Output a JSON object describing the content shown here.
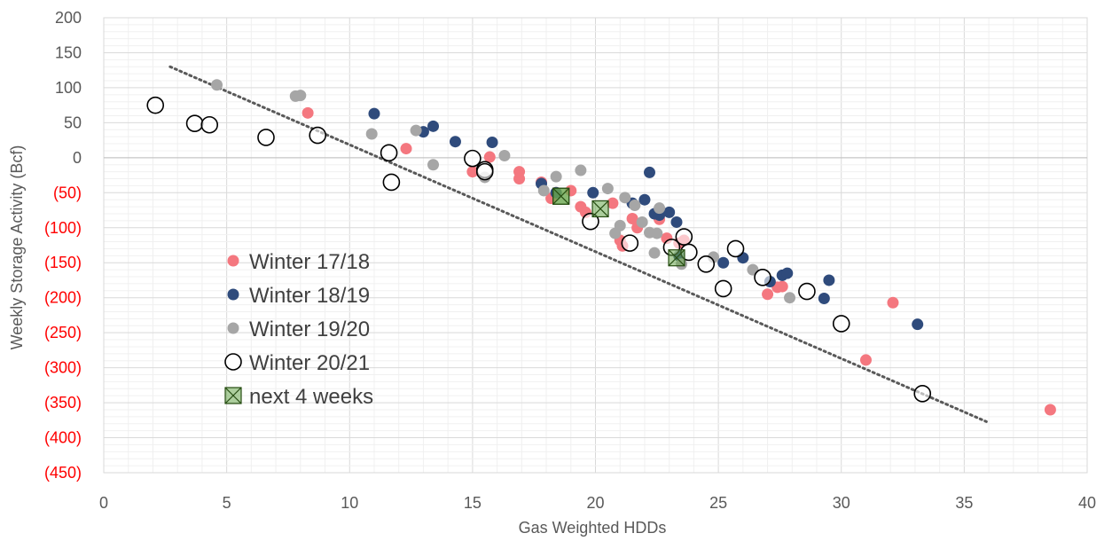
{
  "chart_data": {
    "type": "scatter",
    "xlabel": "Gas Weighted HDDs",
    "ylabel": "Weekly Storage Activity (Bcf)",
    "xlim": [
      0,
      40
    ],
    "ylim": [
      -450,
      200
    ],
    "x_ticks": [
      {
        "value": 0,
        "label": "0"
      },
      {
        "value": 5,
        "label": "5"
      },
      {
        "value": 10,
        "label": "10"
      },
      {
        "value": 15,
        "label": "15"
      },
      {
        "value": 20,
        "label": "20"
      },
      {
        "value": 25,
        "label": "25"
      },
      {
        "value": 30,
        "label": "30"
      },
      {
        "value": 35,
        "label": "35"
      },
      {
        "value": 40,
        "label": "40"
      }
    ],
    "y_ticks": [
      {
        "value": 200,
        "label": "200"
      },
      {
        "value": 150,
        "label": "150"
      },
      {
        "value": 100,
        "label": "100"
      },
      {
        "value": 50,
        "label": "50"
      },
      {
        "value": 0,
        "label": "0"
      },
      {
        "value": -50,
        "label": "(50)"
      },
      {
        "value": -100,
        "label": "(100)"
      },
      {
        "value": -150,
        "label": "(150)"
      },
      {
        "value": -200,
        "label": "(200)"
      },
      {
        "value": -250,
        "label": "(250)"
      },
      {
        "value": -300,
        "label": "(300)"
      },
      {
        "value": -350,
        "label": "(350)"
      },
      {
        "value": -400,
        "label": "(400)"
      },
      {
        "value": -450,
        "label": "(450)"
      }
    ],
    "negative_label_color": "#ff0000",
    "positive_label_color": "#595959",
    "grid": true,
    "legend_position": "lower-left",
    "trendline": {
      "style": "dotted",
      "color": "#595959",
      "x": [
        2.7,
        35.9
      ],
      "y": [
        130,
        -377
      ]
    },
    "series": [
      {
        "name": "Winter 17/18",
        "marker": "filled-circle",
        "color": "#f4777f",
        "points": [
          [
            8.3,
            64
          ],
          [
            12.3,
            13
          ],
          [
            15.0,
            -20
          ],
          [
            15.7,
            1
          ],
          [
            16.9,
            -20
          ],
          [
            16.9,
            -30
          ],
          [
            17.8,
            -35
          ],
          [
            18.2,
            -58
          ],
          [
            18.4,
            -50
          ],
          [
            19.0,
            -47
          ],
          [
            19.4,
            -70
          ],
          [
            19.6,
            -78
          ],
          [
            20.7,
            -65
          ],
          [
            21.0,
            -118
          ],
          [
            21.1,
            -126
          ],
          [
            21.5,
            -87
          ],
          [
            21.7,
            -100
          ],
          [
            22.6,
            -88
          ],
          [
            22.9,
            -115
          ],
          [
            23.4,
            -122
          ],
          [
            23.6,
            -118
          ],
          [
            27.0,
            -195
          ],
          [
            27.4,
            -185
          ],
          [
            27.6,
            -184
          ],
          [
            31.0,
            -289
          ],
          [
            32.1,
            -207
          ],
          [
            38.5,
            -360
          ]
        ]
      },
      {
        "name": "Winter 18/19",
        "marker": "filled-circle",
        "color": "#2f4b7c",
        "points": [
          [
            11.0,
            63
          ],
          [
            13.0,
            37
          ],
          [
            13.4,
            45
          ],
          [
            14.3,
            23
          ],
          [
            15.8,
            22
          ],
          [
            17.8,
            -37
          ],
          [
            18.4,
            -50
          ],
          [
            19.9,
            -50
          ],
          [
            21.5,
            -65
          ],
          [
            22.0,
            -60
          ],
          [
            22.2,
            -21
          ],
          [
            22.4,
            -80
          ],
          [
            22.6,
            -82
          ],
          [
            23.0,
            -78
          ],
          [
            23.3,
            -92
          ],
          [
            23.4,
            -140
          ],
          [
            25.2,
            -150
          ],
          [
            26.0,
            -143
          ],
          [
            27.1,
            -177
          ],
          [
            27.6,
            -168
          ],
          [
            27.8,
            -165
          ],
          [
            29.3,
            -201
          ],
          [
            29.5,
            -175
          ],
          [
            33.1,
            -238
          ]
        ]
      },
      {
        "name": "Winter 19/20",
        "marker": "filled-circle",
        "color": "#a6a6a6",
        "points": [
          [
            4.6,
            104
          ],
          [
            7.8,
            88
          ],
          [
            8.0,
            89
          ],
          [
            10.9,
            34
          ],
          [
            12.7,
            39
          ],
          [
            13.4,
            -10
          ],
          [
            15.5,
            -28
          ],
          [
            16.3,
            3
          ],
          [
            17.9,
            -47
          ],
          [
            18.4,
            -27
          ],
          [
            19.4,
            -18
          ],
          [
            20.5,
            -44
          ],
          [
            20.8,
            -108
          ],
          [
            21.0,
            -97
          ],
          [
            21.2,
            -57
          ],
          [
            21.6,
            -68
          ],
          [
            21.9,
            -92
          ],
          [
            22.2,
            -107
          ],
          [
            22.5,
            -108
          ],
          [
            22.6,
            -72
          ],
          [
            22.4,
            -136
          ],
          [
            23.5,
            -152
          ],
          [
            24.8,
            -142
          ],
          [
            26.4,
            -160
          ],
          [
            27.9,
            -200
          ]
        ]
      },
      {
        "name": "Winter 20/21",
        "marker": "open-circle",
        "color": "#000000",
        "points": [
          [
            2.1,
            75
          ],
          [
            3.7,
            49
          ],
          [
            4.3,
            47
          ],
          [
            6.6,
            29
          ],
          [
            8.7,
            32
          ],
          [
            11.6,
            7
          ],
          [
            11.7,
            -35
          ],
          [
            15.0,
            -1
          ],
          [
            15.5,
            -17
          ],
          [
            15.5,
            -20
          ],
          [
            19.8,
            -91
          ],
          [
            21.4,
            -122
          ],
          [
            23.1,
            -128
          ],
          [
            23.6,
            -113
          ],
          [
            23.8,
            -135
          ],
          [
            24.5,
            -152
          ],
          [
            25.2,
            -187
          ],
          [
            25.7,
            -130
          ],
          [
            26.8,
            -171
          ],
          [
            28.6,
            -191
          ],
          [
            30.0,
            -237
          ],
          [
            33.3,
            -337
          ]
        ]
      },
      {
        "name": "next 4 weeks",
        "marker": "x-box",
        "color": "#6aa84f",
        "points": [
          [
            18.6,
            -55
          ],
          [
            18.6,
            -55
          ],
          [
            20.2,
            -73
          ],
          [
            23.3,
            -143
          ]
        ]
      }
    ]
  }
}
